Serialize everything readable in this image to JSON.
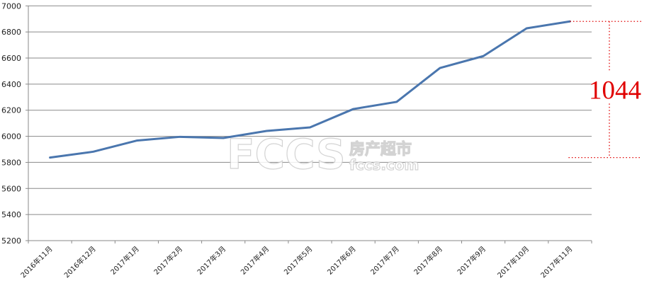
{
  "chart_data": {
    "type": "line",
    "title": "",
    "xlabel": "",
    "ylabel": "",
    "categories": [
      "2016年11月",
      "2016年12月",
      "2017年1月",
      "2017年2月",
      "2017年3月",
      "2017年4月",
      "2017年5月",
      "2017年6月",
      "2017年7月",
      "2017年8月",
      "2017年9月",
      "2017年10月",
      "2017年11月"
    ],
    "series": [
      {
        "values": [
          5837,
          5882,
          5967,
          5996,
          5987,
          6041,
          6068,
          6209,
          6264,
          6524,
          6615,
          6828,
          6881
        ],
        "color": "#4a76ae"
      }
    ],
    "ylim": [
      5200,
      7000
    ],
    "yticks": [
      5200,
      5400,
      5600,
      5800,
      6000,
      6200,
      6400,
      6600,
      6800,
      7000
    ],
    "grid": true,
    "legend": "none",
    "annotation": {
      "text": "1044",
      "color": "#e00000",
      "from": 5837,
      "to": 6881
    }
  },
  "watermark": {
    "logo": "FCCS",
    "cn": "房产超市",
    "url": "fccs.com"
  }
}
